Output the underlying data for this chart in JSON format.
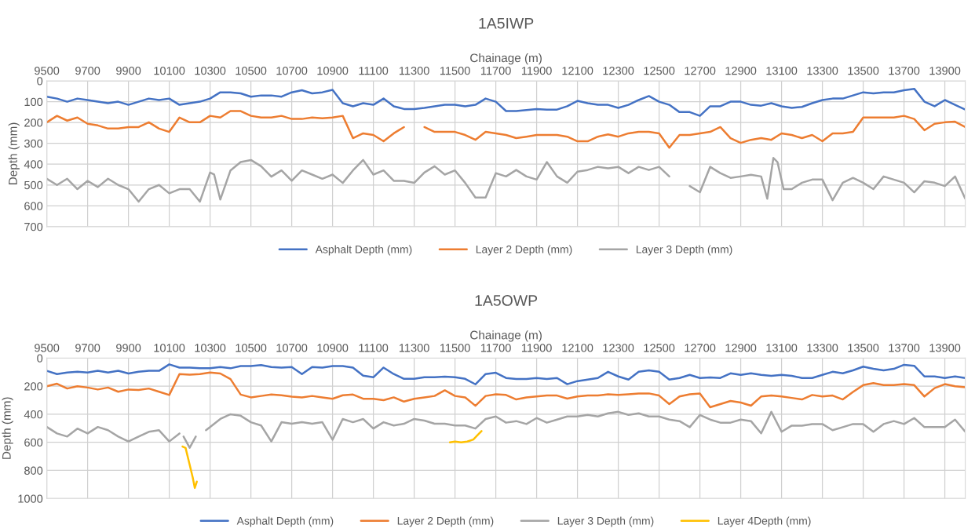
{
  "chart_data": [
    {
      "type": "line",
      "title": "1A5IWP",
      "xlabel": "Chainage (m)",
      "ylabel": "Depth (mm)",
      "grid": true,
      "legend": "bottom",
      "xlim": [
        9500,
        14000
      ],
      "xticks": [
        9500,
        9700,
        9900,
        10100,
        10300,
        10500,
        10700,
        10900,
        11100,
        11300,
        11500,
        11700,
        11900,
        12100,
        12300,
        12500,
        12700,
        12900,
        13100,
        13300,
        13500,
        13700,
        13900
      ],
      "ylim": [
        700,
        0
      ],
      "yticks": [
        0,
        100,
        200,
        300,
        400,
        500,
        600,
        700
      ],
      "x": [
        9500,
        9550,
        9600,
        9650,
        9700,
        9750,
        9800,
        9850,
        9900,
        9950,
        10000,
        10050,
        10100,
        10150,
        10200,
        10250,
        10300,
        10350,
        10400,
        10450,
        10500,
        10550,
        10600,
        10650,
        10700,
        10750,
        10800,
        10850,
        10900,
        10950,
        11000,
        11050,
        11100,
        11150,
        11200,
        11250,
        11300,
        11350,
        11400,
        11450,
        11500,
        11550,
        11600,
        11650,
        11700,
        11750,
        11800,
        11850,
        11900,
        11950,
        12000,
        12050,
        12100,
        12150,
        12200,
        12250,
        12300,
        12350,
        12400,
        12450,
        12500,
        12550,
        12600,
        12650,
        12700,
        12750,
        12800,
        12850,
        12900,
        12950,
        13000,
        13050,
        13100,
        13150,
        13200,
        13250,
        13300,
        13350,
        13400,
        13450,
        13500,
        13550,
        13600,
        13650,
        13700,
        13750,
        13800,
        13850,
        13900,
        13950,
        14000
      ],
      "series": [
        {
          "name": "Asphalt Depth (mm)",
          "color": "#4472c4",
          "values": [
            76,
            85,
            100,
            85,
            92,
            100,
            107,
            100,
            115,
            100,
            85,
            92,
            85,
            115,
            107,
            100,
            85,
            55,
            55,
            60,
            76,
            70,
            70,
            76,
            55,
            45,
            60,
            55,
            43,
            107,
            122,
            107,
            115,
            85,
            122,
            135,
            135,
            130,
            122,
            115,
            115,
            122,
            115,
            85,
            100,
            145,
            145,
            140,
            135,
            138,
            138,
            122,
            96,
            107,
            115,
            115,
            130,
            115,
            92,
            73,
            100,
            115,
            150,
            150,
            168,
            122,
            122,
            100,
            100,
            115,
            119,
            107,
            122,
            130,
            125,
            107,
            92,
            85,
            85,
            70,
            55,
            60,
            55,
            55,
            45,
            38,
            100,
            122,
            92,
            115,
            138
          ]
        },
        {
          "name": "Layer 2 Depth (mm)",
          "color": "#ed7d31",
          "values": [
            199,
            168,
            191,
            176,
            206,
            214,
            229,
            229,
            222,
            222,
            199,
            229,
            245,
            176,
            199,
            199,
            168,
            176,
            145,
            145,
            168,
            176,
            176,
            168,
            183,
            183,
            176,
            180,
            176,
            168,
            275,
            252,
            260,
            290,
            252,
            222,
            null,
            222,
            245,
            245,
            245,
            260,
            283,
            245,
            252,
            260,
            275,
            268,
            260,
            260,
            260,
            268,
            290,
            290,
            268,
            257,
            268,
            252,
            245,
            245,
            252,
            321,
            260,
            260,
            252,
            245,
            222,
            275,
            298,
            283,
            275,
            283,
            252,
            260,
            275,
            260,
            290,
            252,
            252,
            245,
            176,
            176,
            176,
            176,
            168,
            183,
            237,
            206,
            199,
            196,
            222
          ]
        },
        {
          "name": "Layer 3 Depth (mm)",
          "color": "#a5a5a5",
          "x": [
            9500,
            9550,
            9600,
            9650,
            9700,
            9750,
            9800,
            9850,
            9900,
            9950,
            10000,
            10050,
            10100,
            10150,
            10200,
            10250,
            10300,
            10320,
            10350,
            10400,
            10450,
            10500,
            10550,
            10600,
            10650,
            10700,
            10750,
            10800,
            10850,
            10900,
            10950,
            11000,
            11050,
            11100,
            11150,
            11200,
            11250,
            11300,
            11350,
            11400,
            11450,
            11500,
            11550,
            11600,
            11650,
            11700,
            11750,
            11800,
            11850,
            11900,
            11950,
            12000,
            12050,
            12100,
            12150,
            12200,
            12250,
            12300,
            12350,
            12400,
            12450,
            12500,
            12550,
            12600,
            12650,
            12700,
            12750,
            12800,
            12850,
            12900,
            12950,
            13000,
            13030,
            13060,
            13080,
            13110,
            13150,
            13200,
            13250,
            13300,
            13350,
            13400,
            13450,
            13500,
            13550,
            13600,
            13650,
            13700,
            13750,
            13800,
            13850,
            13900,
            13950,
            14000
          ],
          "values": [
            470,
            500,
            470,
            520,
            480,
            510,
            470,
            500,
            520,
            580,
            520,
            500,
            540,
            520,
            520,
            580,
            440,
            450,
            570,
            430,
            390,
            380,
            410,
            460,
            430,
            480,
            430,
            450,
            470,
            450,
            490,
            430,
            380,
            450,
            430,
            480,
            480,
            490,
            440,
            410,
            450,
            430,
            490,
            560,
            560,
            443,
            459,
            428,
            459,
            474,
            390,
            459,
            489,
            436,
            428,
            413,
            420,
            413,
            443,
            413,
            428,
            413,
            459,
            null,
            505,
            535,
            413,
            443,
            466,
            459,
            451,
            459,
            566,
            370,
            390,
            520,
            520,
            489,
            474,
            474,
            573,
            489,
            466,
            489,
            520,
            459,
            474,
            489,
            535,
            482,
            489,
            505,
            459,
            566
          ]
        }
      ]
    },
    {
      "type": "line",
      "title": "1A5OWP",
      "xlabel": "Chainage (m)",
      "ylabel": "Depth (mm)",
      "grid": true,
      "legend": "bottom",
      "xlim": [
        9500,
        14000
      ],
      "xticks": [
        9500,
        9700,
        9900,
        10100,
        10300,
        10500,
        10700,
        10900,
        11100,
        11300,
        11500,
        11700,
        11900,
        12100,
        12300,
        12500,
        12700,
        12900,
        13100,
        13300,
        13500,
        13700,
        13900
      ],
      "ylim": [
        1000,
        0
      ],
      "yticks": [
        0,
        200,
        400,
        600,
        800,
        1000
      ],
      "x": [
        9500,
        9550,
        9600,
        9650,
        9700,
        9750,
        9800,
        9850,
        9900,
        9950,
        10000,
        10050,
        10100,
        10150,
        10200,
        10250,
        10300,
        10350,
        10400,
        10450,
        10500,
        10550,
        10600,
        10650,
        10700,
        10750,
        10800,
        10850,
        10900,
        10950,
        11000,
        11050,
        11100,
        11150,
        11200,
        11250,
        11300,
        11350,
        11400,
        11450,
        11500,
        11550,
        11600,
        11650,
        11700,
        11750,
        11800,
        11850,
        11900,
        11950,
        12000,
        12050,
        12100,
        12150,
        12200,
        12250,
        12300,
        12350,
        12400,
        12450,
        12500,
        12550,
        12600,
        12650,
        12700,
        12750,
        12800,
        12850,
        12900,
        12950,
        13000,
        13050,
        13100,
        13150,
        13200,
        13250,
        13300,
        13350,
        13400,
        13450,
        13500,
        13550,
        13600,
        13650,
        13700,
        13750,
        13800,
        13850,
        13900,
        13950,
        14000
      ],
      "series": [
        {
          "name": "Asphalt Depth (mm)",
          "color": "#4472c4",
          "values": [
            91,
            114,
            103,
            98,
            103,
            91,
            103,
            91,
            110,
            98,
            91,
            91,
            45,
            68,
            68,
            73,
            73,
            64,
            73,
            57,
            57,
            50,
            64,
            68,
            64,
            114,
            64,
            68,
            57,
            57,
            68,
            126,
            137,
            68,
            114,
            148,
            148,
            137,
            137,
            132,
            137,
            148,
            187,
            114,
            105,
            142,
            149,
            149,
            142,
            149,
            142,
            186,
            164,
            153,
            142,
            98,
            131,
            153,
            98,
            88,
            98,
            153,
            142,
            120,
            142,
            138,
            142,
            109,
            120,
            109,
            120,
            127,
            120,
            127,
            142,
            142,
            120,
            98,
            109,
            88,
            61,
            77,
            88,
            77,
            48,
            55,
            131,
            131,
            142,
            131,
            142
          ]
        },
        {
          "name": "Layer 2 Depth (mm)",
          "color": "#ed7d31",
          "values": [
            201,
            183,
            217,
            201,
            210,
            224,
            210,
            240,
            224,
            228,
            217,
            240,
            263,
            114,
            119,
            114,
            103,
            110,
            150,
            260,
            280,
            270,
            260,
            265,
            275,
            280,
            270,
            280,
            290,
            265,
            260,
            290,
            290,
            300,
            280,
            310,
            290,
            280,
            270,
            230,
            270,
            280,
            340,
            270,
            258,
            263,
            295,
            280,
            274,
            267,
            267,
            289,
            274,
            267,
            267,
            258,
            263,
            258,
            252,
            252,
            267,
            328,
            274,
            258,
            252,
            350,
            328,
            306,
            317,
            339,
            274,
            267,
            274,
            284,
            295,
            263,
            274,
            267,
            295,
            241,
            193,
            179,
            193,
            193,
            186,
            193,
            274,
            214,
            186,
            201,
            208
          ]
        },
        {
          "name": "Layer 3 Depth (mm)",
          "color": "#a5a5a5",
          "x": [
            9500,
            9550,
            9600,
            9650,
            9700,
            9750,
            9800,
            9850,
            9900,
            9950,
            10000,
            10050,
            10100,
            10150,
            10160,
            10170,
            10200,
            10230,
            10250,
            10280,
            10300,
            10350,
            10400,
            10450,
            10500,
            10550,
            10600,
            10650,
            10700,
            10750,
            10800,
            10850,
            10900,
            10950,
            11000,
            11050,
            11100,
            11150,
            11200,
            11250,
            11300,
            11350,
            11400,
            11450,
            11500,
            11550,
            11600,
            11650,
            11700,
            11750,
            11800,
            11850,
            11900,
            11950,
            12000,
            12050,
            12100,
            12150,
            12200,
            12250,
            12300,
            12350,
            12400,
            12450,
            12500,
            12550,
            12600,
            12650,
            12700,
            12750,
            12800,
            12850,
            12900,
            12950,
            13000,
            13050,
            13100,
            13150,
            13200,
            13250,
            13300,
            13350,
            13400,
            13450,
            13500,
            13550,
            13600,
            13650,
            13700,
            13750,
            13800,
            13850,
            13900,
            13950,
            14000
          ],
          "values": [
            491,
            537,
            559,
            502,
            537,
            491,
            514,
            559,
            594,
            559,
            525,
            514,
            594,
            537,
            null,
            559,
            639,
            559,
            null,
            514,
            491,
            434,
            400,
            411,
            457,
            480,
            594,
            457,
            468,
            457,
            468,
            457,
            582,
            434,
            457,
            434,
            502,
            457,
            480,
            468,
            434,
            445,
            468,
            468,
            480,
            480,
            502,
            434,
            416,
            460,
            449,
            470,
            427,
            460,
            438,
            416,
            416,
            405,
            416,
            394,
            383,
            405,
            394,
            416,
            416,
            438,
            449,
            492,
            405,
            438,
            460,
            460,
            438,
            449,
            536,
            383,
            525,
            481,
            481,
            470,
            470,
            514,
            492,
            470,
            470,
            525,
            470,
            449,
            470,
            427,
            492,
            492,
            492,
            438,
            525
          ]
        },
        {
          "name": "Layer 4Depth (mm)",
          "color": "#ffc000",
          "x": [
            10165,
            10180,
            10200,
            10215,
            10225,
            10235,
            10240,
            11475,
            11500,
            11530,
            11560,
            11590,
            11610,
            11630
          ],
          "values": [
            630,
            640,
            760,
            850,
            925,
            880,
            null,
            600,
            595,
            600,
            595,
            580,
            550,
            520
          ]
        }
      ]
    }
  ]
}
